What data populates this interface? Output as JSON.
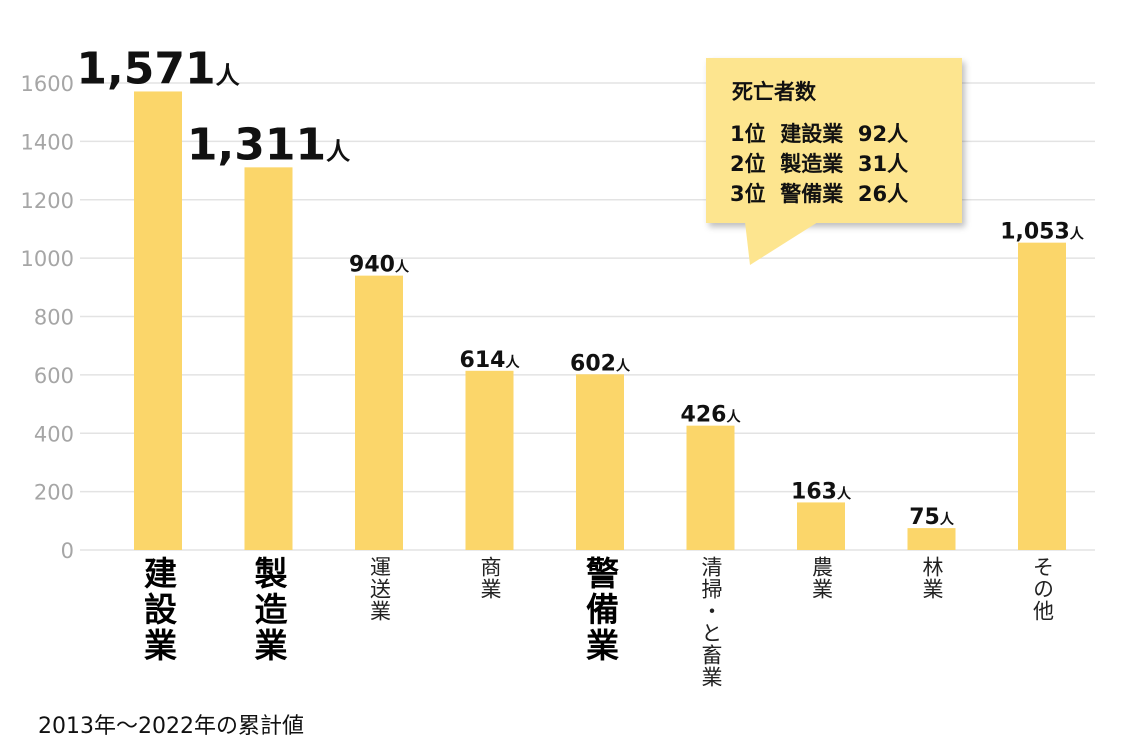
{
  "chart_data": {
    "type": "bar",
    "categories": [
      "建設業",
      "製造業",
      "運送業",
      "商業",
      "警備業",
      "清掃・と畜業",
      "農業",
      "林業",
      "その他"
    ],
    "values": [
      1571,
      1311,
      940,
      614,
      602,
      426,
      163,
      75,
      1053
    ],
    "value_labels": [
      "1,571",
      "1,311",
      "940",
      "614",
      "602",
      "426",
      "163",
      "75",
      "1,053"
    ],
    "value_unit": "人",
    "emphasized": [
      true,
      true,
      false,
      false,
      true,
      false,
      false,
      false,
      false
    ],
    "ylim": [
      0,
      1600
    ],
    "yticks": [
      0,
      200,
      400,
      600,
      800,
      1000,
      1200,
      1400,
      1600
    ],
    "grid": true,
    "bar_color": "#fbd66a"
  },
  "callout": {
    "title": "死亡者数",
    "rows": [
      {
        "rank": "1位",
        "industry": "建設業",
        "count": "92人"
      },
      {
        "rank": "2位",
        "industry": "製造業",
        "count": "31人"
      },
      {
        "rank": "3位",
        "industry": "警備業",
        "count": "26人"
      }
    ]
  },
  "footnote": "2013年～2022年の累計値"
}
